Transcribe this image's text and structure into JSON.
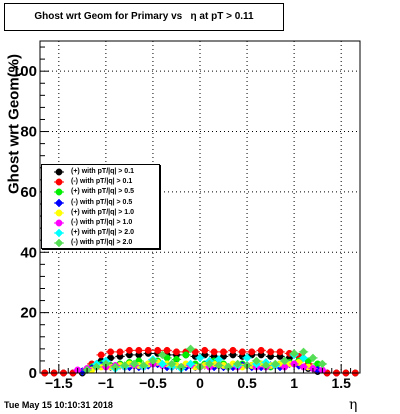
{
  "title": "Ghost wrt Geom for Primary vs   η at pT > 0.11",
  "datestamp": "Tue May 15 10:10:31 2018",
  "chart_data": {
    "type": "scatter",
    "title": "Ghost wrt Geom for Primary vs   η at pT > 0.11",
    "xlabel": "η",
    "ylabel": "Ghost wrt Geom(%)",
    "xlim": [
      -1.7,
      1.7
    ],
    "ylim": [
      0,
      110
    ],
    "xticks": [
      -1.5,
      -1,
      -0.5,
      0,
      0.5,
      1,
      1.5
    ],
    "xtick_labels": [
      "−1.5",
      "−1",
      "−0.5",
      "0",
      "0.5",
      "1",
      "1.5"
    ],
    "yticks": [
      0,
      20,
      40,
      60,
      80,
      100
    ],
    "ytick_labels": [
      "0",
      "20",
      "40",
      "60",
      "80",
      "100"
    ],
    "grid": true,
    "legend_position": "left-middle",
    "series": [
      {
        "name": "(+) with pT/|q| > 0.1",
        "color": "#000000",
        "marker": "circle",
        "x": [
          -1.65,
          -1.55,
          -1.45,
          -1.35,
          -1.25,
          -1.15,
          -1.05,
          -0.95,
          -0.85,
          -0.75,
          -0.65,
          -0.55,
          -0.45,
          -0.35,
          -0.25,
          -0.15,
          -0.05,
          0.05,
          0.15,
          0.25,
          0.35,
          0.45,
          0.55,
          0.65,
          0.75,
          0.85,
          0.95,
          1.05,
          1.15,
          1.25,
          1.35,
          1.45,
          1.55,
          1.65
        ],
        "y": [
          0,
          0,
          0,
          0,
          0,
          1.5,
          4,
          5,
          5.5,
          6,
          6,
          6.5,
          6.5,
          6,
          6,
          6,
          5.5,
          6,
          5.5,
          5.5,
          6,
          5.5,
          6,
          6,
          5.5,
          5.5,
          5,
          4,
          1.5,
          0.5,
          0,
          0,
          0,
          0
        ]
      },
      {
        "name": "(-) with pT/|q| > 0.1",
        "color": "#ff0000",
        "marker": "circle",
        "x": [
          -1.65,
          -1.55,
          -1.45,
          -1.35,
          -1.25,
          -1.15,
          -1.05,
          -0.95,
          -0.85,
          -0.75,
          -0.65,
          -0.55,
          -0.45,
          -0.35,
          -0.25,
          -0.15,
          -0.05,
          0.05,
          0.15,
          0.25,
          0.35,
          0.45,
          0.55,
          0.65,
          0.75,
          0.85,
          0.95,
          1.05,
          1.15,
          1.25,
          1.35,
          1.45,
          1.55,
          1.65
        ],
        "y": [
          0,
          0,
          0,
          0,
          0.5,
          3,
          6,
          7,
          7,
          7.5,
          7.5,
          7.5,
          7.5,
          7.5,
          7,
          7,
          7,
          7.5,
          7,
          7,
          7.5,
          7,
          7,
          7.5,
          7,
          7,
          6.5,
          5.5,
          3,
          1,
          0,
          0,
          0,
          0
        ]
      },
      {
        "name": "(+) with pT/|q| > 0.5",
        "color": "#00ee00",
        "marker": "circle",
        "x": [
          -1.25,
          -1.15,
          -1.05,
          -0.95,
          -0.85,
          -0.75,
          -0.65,
          -0.55,
          -0.45,
          -0.35,
          -0.25,
          -0.15,
          -0.05,
          0.05,
          0.15,
          0.25,
          0.35,
          0.45,
          0.55,
          0.65,
          0.75,
          0.85,
          0.95,
          1.05,
          1.15,
          1.25
        ],
        "y": [
          0.5,
          2,
          3,
          2.5,
          3,
          3.5,
          4,
          3,
          4,
          5,
          4.5,
          6,
          3,
          3,
          4,
          3,
          2.5,
          3,
          2.5,
          3,
          2,
          3,
          3.5,
          4,
          4,
          3
        ]
      },
      {
        "name": "(-) with pT/|q| > 0.5",
        "color": "#0000ff",
        "marker": "diamond",
        "x": [
          -1.25,
          -1.15,
          -1.05,
          -0.95,
          -0.85,
          -0.75,
          -0.65,
          -0.55,
          -0.45,
          -0.35,
          -0.25,
          -0.15,
          -0.05,
          0.05,
          0.15,
          0.25,
          0.35,
          0.45,
          0.55,
          0.65,
          0.75,
          0.85,
          0.95,
          1.05,
          1.15,
          1.25
        ],
        "y": [
          0.5,
          1.5,
          2.5,
          2,
          2.5,
          2,
          2,
          2.5,
          3,
          2,
          2.5,
          2,
          2,
          2.5,
          2,
          2,
          2,
          2.5,
          2,
          2,
          2.5,
          2,
          3,
          2.5,
          2,
          1
        ]
      },
      {
        "name": "(+) with pT/|q| > 1.0",
        "color": "#ffff00",
        "marker": "circle",
        "x": [
          -1.15,
          -1.05,
          -0.95,
          -0.85,
          -0.75,
          -0.65,
          -0.55,
          -0.45,
          -0.35,
          -0.25,
          -0.15,
          -0.05,
          0.05,
          0.15,
          0.25,
          0.35,
          0.45,
          0.55,
          0.65,
          0.75,
          0.85,
          0.95,
          1.05,
          1.15
        ],
        "y": [
          1,
          2,
          2,
          2.5,
          3,
          2.5,
          3,
          3.5,
          3,
          2.5,
          3,
          2,
          2.5,
          3,
          2.5,
          3,
          2,
          2.5,
          3,
          2.5,
          3,
          3,
          3.5,
          2
        ]
      },
      {
        "name": "(-) with pT/|q| > 1.0",
        "color": "#ff00ff",
        "marker": "circle",
        "x": [
          -1.3,
          -1.2,
          -1.1,
          -1.0,
          -0.9,
          -0.8,
          -0.7,
          -0.6,
          -0.5,
          -0.4,
          -0.3,
          -0.2,
          -0.1,
          0.0,
          0.1,
          0.2,
          0.3,
          0.4,
          0.5,
          0.6,
          0.7,
          0.8,
          0.9,
          1.0,
          1.1,
          1.2,
          1.3
        ],
        "y": [
          1,
          1.5,
          2,
          2,
          2.5,
          2,
          2.5,
          2,
          3,
          2.5,
          2,
          2,
          2.5,
          2,
          2,
          2.5,
          2,
          2,
          2.5,
          2,
          2,
          2.5,
          2,
          3,
          2,
          1.5,
          1
        ]
      },
      {
        "name": "(+) with pT/|q| > 2.0",
        "color": "#00ffff",
        "marker": "diamond",
        "x": [
          -1.1,
          -1.0,
          -0.9,
          -0.8,
          -0.7,
          -0.6,
          -0.5,
          -0.4,
          -0.3,
          -0.2,
          -0.1,
          0.0,
          0.1,
          0.2,
          0.3,
          0.4,
          0.5,
          0.6,
          0.7,
          0.8,
          0.9,
          1.0,
          1.1
        ],
        "y": [
          3,
          4,
          1.5,
          2,
          3,
          2,
          4.5,
          3,
          2,
          1.5,
          3,
          5,
          4,
          4.5,
          2,
          2.5,
          5,
          3,
          3.5,
          2.5,
          4,
          6,
          5
        ]
      },
      {
        "name": "(-) with pT/|q| > 2.0",
        "color": "#55dd55",
        "marker": "diamond",
        "x": [
          -1.2,
          -1.1,
          -1.0,
          -0.9,
          -0.8,
          -0.7,
          -0.6,
          -0.5,
          -0.4,
          -0.3,
          -0.2,
          -0.1,
          0.0,
          0.1,
          0.2,
          0.3,
          0.4,
          0.5,
          0.6,
          0.7,
          0.8,
          0.9,
          1.0,
          1.1,
          1.2,
          1.3
        ],
        "y": [
          1,
          2,
          3,
          2,
          2.5,
          3,
          2.5,
          4,
          6,
          3,
          2,
          8,
          2,
          3,
          2.5,
          2,
          3,
          2.5,
          4,
          2.5,
          3,
          4,
          6.5,
          7,
          5,
          3
        ]
      }
    ]
  }
}
